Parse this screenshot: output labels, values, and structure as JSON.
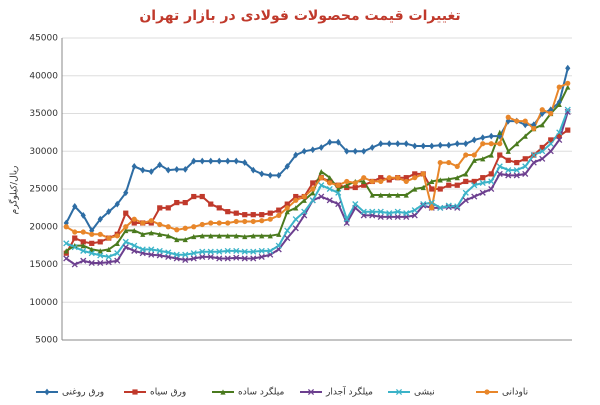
{
  "chart_data": {
    "type": "line",
    "title": "تغییرات قیمت محصولات فولادی در بازار تهران",
    "y_label": "ریال/کیلوگرم",
    "categories": [
      null,
      null,
      null,
      null,
      null,
      null,
      null,
      null,
      null,
      null,
      null,
      null,
      null,
      null,
      null,
      null,
      null,
      null,
      null,
      null,
      null,
      null,
      null,
      null,
      null,
      null,
      null,
      null,
      null,
      null,
      null,
      null,
      null,
      null,
      null,
      null,
      null,
      null,
      null,
      null,
      null,
      null,
      null,
      null,
      null,
      null,
      null,
      null,
      null,
      null,
      null,
      null,
      null,
      null,
      null,
      null,
      null,
      null,
      null,
      null
    ],
    "ylim": [
      5000,
      45000
    ],
    "yticks": [
      5000,
      10000,
      15000,
      20000,
      25000,
      30000,
      35000,
      40000,
      45000
    ],
    "grid": true,
    "legend": "bottom",
    "series": [
      {
        "name": "ورق روغنی",
        "color": "#2e6da4",
        "marker": "diamond",
        "values": [
          20500,
          22700,
          21500,
          19500,
          21000,
          22000,
          23000,
          24500,
          28000,
          27500,
          27300,
          28200,
          27500,
          27600,
          27600,
          28700,
          28700,
          28700,
          28700,
          28700,
          28700,
          28500,
          27500,
          27000,
          26800,
          26800,
          28000,
          29500,
          30000,
          30200,
          30500,
          31200,
          31200,
          30000,
          30000,
          30000,
          30500,
          31000,
          31000,
          31000,
          31000,
          30700,
          30700,
          30700,
          30800,
          30800,
          31000,
          31000,
          31500,
          31800,
          32000,
          32000,
          34000,
          34000,
          33500,
          33500,
          35000,
          35500,
          36500,
          41000
        ]
      },
      {
        "name": "ورق سیاه",
        "color": "#c0392b",
        "marker": "square",
        "values": [
          16500,
          18500,
          18000,
          17800,
          18000,
          18500,
          19000,
          21800,
          20500,
          20500,
          20500,
          22500,
          22500,
          23200,
          23200,
          24000,
          24000,
          23000,
          22500,
          22000,
          21800,
          21600,
          21600,
          21600,
          21800,
          22200,
          23000,
          24000,
          24000,
          25800,
          26500,
          26000,
          25500,
          25200,
          25200,
          25500,
          26000,
          26500,
          26200,
          26500,
          26500,
          27000,
          27000,
          25000,
          25000,
          25500,
          25500,
          26000,
          26000,
          26500,
          27000,
          29500,
          28800,
          28500,
          29000,
          29500,
          30500,
          31500,
          32000,
          32800
        ]
      },
      {
        "name": "میلگرد ساده",
        "color": "#4a7a1e",
        "marker": "triangle",
        "values": [
          16800,
          17500,
          17500,
          17000,
          16800,
          17000,
          17800,
          19500,
          19500,
          19000,
          19200,
          19000,
          18800,
          18300,
          18300,
          18700,
          18800,
          18800,
          18800,
          18800,
          18800,
          18700,
          18800,
          18800,
          18800,
          19000,
          22000,
          22500,
          23500,
          24500,
          27300,
          26500,
          25000,
          25500,
          26000,
          26000,
          24200,
          24200,
          24200,
          24200,
          24200,
          25000,
          25200,
          26000,
          26200,
          26300,
          26500,
          27000,
          28800,
          29000,
          29500,
          32500,
          30000,
          31000,
          32000,
          33000,
          33500,
          35000,
          36200,
          38500
        ]
      },
      {
        "name": "میلگرد آجدار",
        "color": "#6c3f8f",
        "marker": "cross",
        "values": [
          15800,
          15000,
          15500,
          15200,
          15200,
          15300,
          15500,
          17300,
          16800,
          16500,
          16300,
          16200,
          16000,
          15800,
          15600,
          15800,
          16000,
          16000,
          15800,
          15800,
          15900,
          15800,
          15800,
          16000,
          16300,
          17000,
          18500,
          19800,
          21500,
          23500,
          24000,
          23500,
          23000,
          20500,
          22500,
          21500,
          21500,
          21300,
          21300,
          21300,
          21300,
          21500,
          22800,
          22500,
          22500,
          22600,
          22500,
          23500,
          24000,
          24500,
          25000,
          27000,
          26800,
          26800,
          27000,
          28500,
          29000,
          30000,
          31500,
          35200
        ]
      },
      {
        "name": "نبشی",
        "color": "#3bb3c8",
        "marker": "cross",
        "values": [
          17800,
          17300,
          16800,
          16500,
          16200,
          16000,
          16500,
          18000,
          17500,
          17000,
          17000,
          16800,
          16600,
          16300,
          16300,
          16500,
          16700,
          16700,
          16700,
          16800,
          16800,
          16700,
          16700,
          16800,
          16800,
          17500,
          19500,
          21000,
          22000,
          23500,
          25500,
          25000,
          24500,
          21000,
          23000,
          22000,
          22000,
          22000,
          21800,
          22000,
          21800,
          22200,
          23000,
          23200,
          22500,
          22800,
          22700,
          24500,
          25500,
          25800,
          26000,
          28000,
          27500,
          27500,
          28000,
          29500,
          30000,
          31000,
          32500,
          35500
        ]
      },
      {
        "name": "ناودانی",
        "color": "#e8862a",
        "marker": "circle",
        "values": [
          20000,
          19300,
          19300,
          19000,
          19000,
          18500,
          18800,
          20000,
          21000,
          20500,
          20800,
          20300,
          20000,
          19600,
          19800,
          20000,
          20300,
          20500,
          20500,
          20500,
          20700,
          20700,
          20700,
          20800,
          21000,
          21500,
          22500,
          23500,
          24000,
          25000,
          26500,
          25800,
          25500,
          26000,
          25800,
          26500,
          26000,
          26000,
          26500,
          26500,
          26000,
          26500,
          27000,
          22500,
          28500,
          28500,
          28000,
          29500,
          29500,
          31000,
          31000,
          31000,
          34500,
          34000,
          34000,
          33000,
          35500,
          35000,
          38500,
          39000
        ]
      }
    ]
  }
}
